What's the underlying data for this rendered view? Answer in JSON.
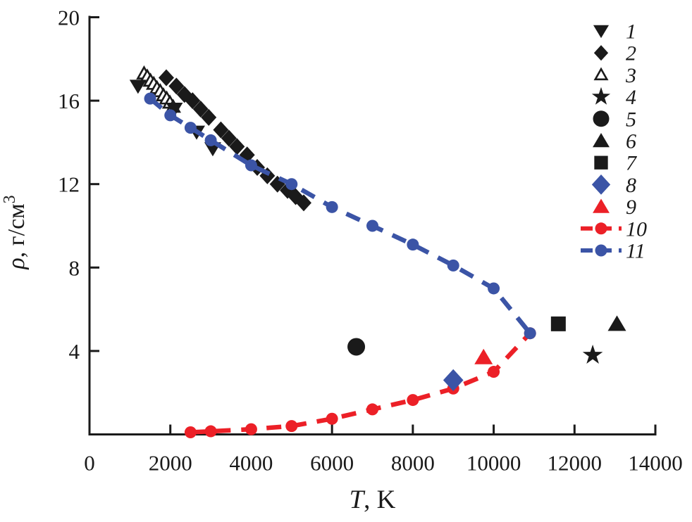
{
  "figure": {
    "title": "",
    "kind": "density vs temperature scatter plot"
  },
  "chart_data": {
    "type": "scatter",
    "xlabel_main": "T",
    "xlabel_rest": ", K",
    "ylabel_main": "ρ",
    "ylabel_rest": ", г/см",
    "ylabel_sup": "3",
    "xlim": [
      0,
      14000
    ],
    "ylim": [
      0,
      20
    ],
    "x_ticks": [
      0,
      2000,
      4000,
      6000,
      8000,
      10000,
      12000,
      14000
    ],
    "y_ticks": [
      4,
      8,
      12,
      16,
      20
    ],
    "grid": false,
    "legend_position": "top-right",
    "colors": {
      "black": "#1a1a1a",
      "red": "#ec2027",
      "blue": "#3b54a6"
    },
    "series": [
      {
        "label": "1",
        "marker": "triangle-down",
        "color": "#1a1a1a",
        "line": false,
        "points": [
          [
            1200,
            16.7
          ],
          [
            2100,
            15.6
          ],
          [
            2650,
            14.5
          ],
          [
            3050,
            13.7
          ]
        ]
      },
      {
        "label": "2",
        "marker": "diamond",
        "color": "#1a1a1a",
        "line": false,
        "points": [
          [
            1900,
            17.1
          ],
          [
            2150,
            16.7
          ],
          [
            2350,
            16.3
          ],
          [
            2550,
            16.0
          ],
          [
            2750,
            15.6
          ],
          [
            2950,
            15.2
          ],
          [
            3250,
            14.6
          ],
          [
            3450,
            14.2
          ],
          [
            3650,
            13.8
          ],
          [
            3900,
            13.4
          ],
          [
            4150,
            12.8
          ],
          [
            4400,
            12.4
          ],
          [
            4650,
            12.0
          ],
          [
            4900,
            11.7
          ],
          [
            5100,
            11.4
          ],
          [
            5300,
            11.1
          ]
        ]
      },
      {
        "label": "3",
        "marker": "triangle-open",
        "color": "#1a1a1a",
        "line": false,
        "points": [
          [
            1350,
            17.3
          ],
          [
            1430,
            17.15
          ],
          [
            1510,
            16.95
          ],
          [
            1590,
            16.8
          ],
          [
            1670,
            16.6
          ],
          [
            1750,
            16.45
          ],
          [
            1830,
            16.25
          ],
          [
            1910,
            16.1
          ],
          [
            1990,
            15.9
          ],
          [
            2070,
            15.7
          ]
        ]
      },
      {
        "label": "4",
        "marker": "star",
        "color": "#1a1a1a",
        "line": false,
        "points": [
          [
            12450,
            3.8
          ]
        ]
      },
      {
        "label": "5",
        "marker": "circle",
        "color": "#1a1a1a",
        "line": false,
        "points": [
          [
            6600,
            4.2
          ]
        ]
      },
      {
        "label": "6",
        "marker": "triangle-up",
        "color": "#1a1a1a",
        "line": false,
        "points": [
          [
            13050,
            5.3
          ]
        ]
      },
      {
        "label": "7",
        "marker": "square",
        "color": "#1a1a1a",
        "line": false,
        "points": [
          [
            11600,
            5.3
          ]
        ]
      },
      {
        "label": "8",
        "marker": "diamond",
        "color": "#3b54a6",
        "line": false,
        "marker_scale": 1.3,
        "points": [
          [
            9000,
            2.6
          ]
        ]
      },
      {
        "label": "9",
        "marker": "triangle-up",
        "color": "#ec2027",
        "line": false,
        "points": [
          [
            9750,
            3.7
          ]
        ]
      },
      {
        "label": "10",
        "marker": "dot",
        "color": "#ec2027",
        "line": true,
        "points": [
          [
            2500,
            0.1
          ],
          [
            3000,
            0.15
          ],
          [
            4000,
            0.25
          ],
          [
            5000,
            0.4
          ],
          [
            6000,
            0.75
          ],
          [
            7000,
            1.2
          ],
          [
            8000,
            1.65
          ],
          [
            9000,
            2.2
          ],
          [
            10000,
            3.0
          ],
          [
            10900,
            4.85
          ]
        ]
      },
      {
        "label": "11",
        "marker": "dot",
        "color": "#3b54a6",
        "line": true,
        "points": [
          [
            1500,
            16.1
          ],
          [
            2000,
            15.3
          ],
          [
            2500,
            14.7
          ],
          [
            3000,
            14.1
          ],
          [
            4000,
            12.9
          ],
          [
            5000,
            12.0
          ],
          [
            6000,
            10.9
          ],
          [
            7000,
            10.0
          ],
          [
            8000,
            9.1
          ],
          [
            9000,
            8.1
          ],
          [
            10000,
            7.0
          ],
          [
            10900,
            4.85
          ]
        ]
      }
    ]
  }
}
